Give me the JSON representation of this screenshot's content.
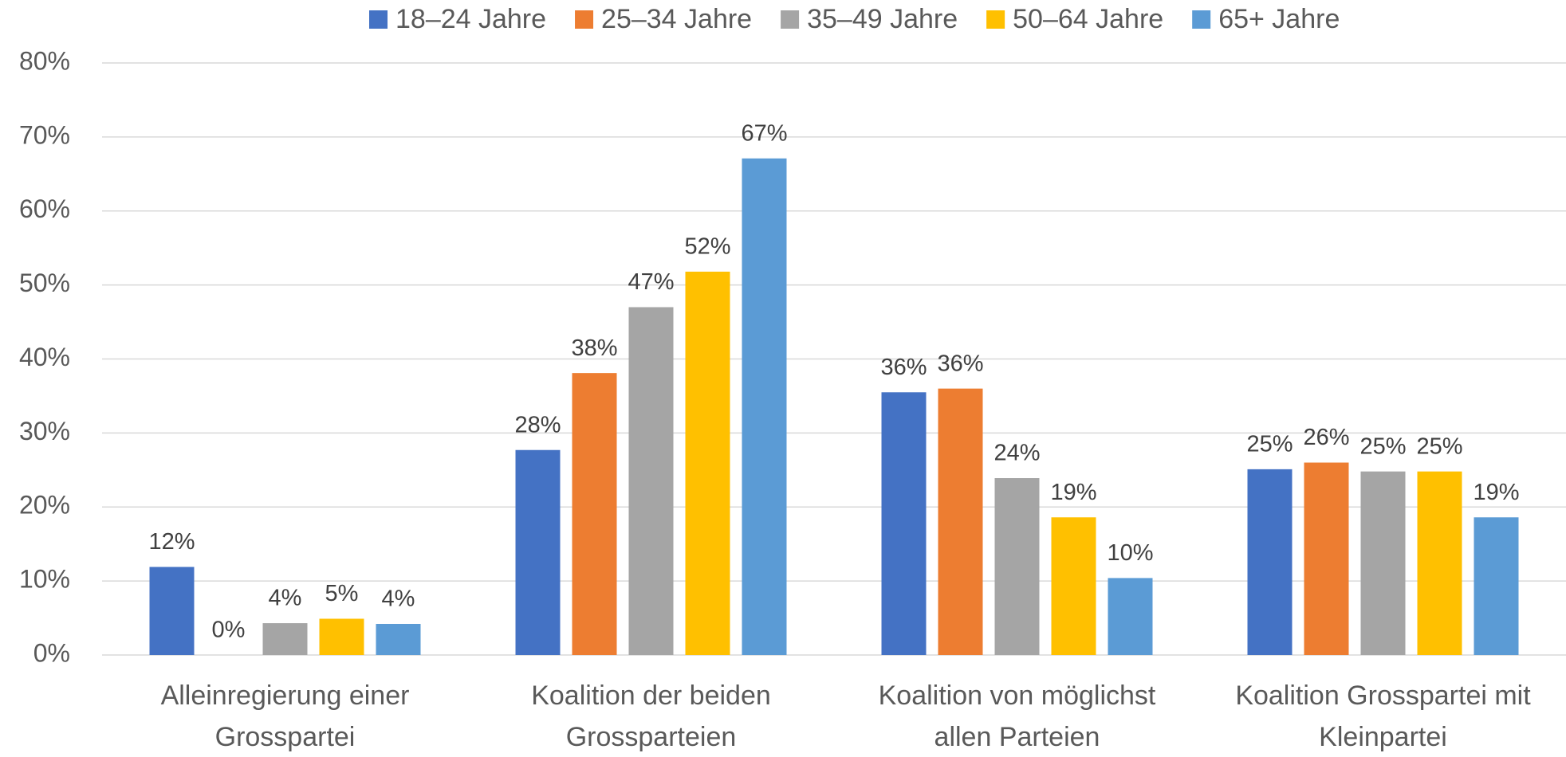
{
  "chart_data": {
    "type": "bar",
    "categories": [
      "Alleinregierung einer Grosspartei",
      "Koalition der beiden Grossparteien",
      "Koalition von möglichst allen Parteien",
      "Koalition Grosspartei mit Kleinpartei"
    ],
    "series": [
      {
        "name": "18–24 Jahre",
        "color": "#4472c4",
        "values": [
          11.9,
          27.7,
          35.5,
          25.1
        ],
        "value_labels": [
          "12%",
          "28%",
          "36%",
          "25%"
        ]
      },
      {
        "name": "25–34 Jahre",
        "color": "#ed7d31",
        "values": [
          0,
          38.1,
          36.0,
          26.0
        ],
        "value_labels": [
          "0%",
          "38%",
          "36%",
          "26%"
        ]
      },
      {
        "name": "35–49 Jahre",
        "color": "#a5a5a5",
        "values": [
          4.3,
          47.0,
          23.9,
          24.8
        ],
        "value_labels": [
          "4%",
          "47%",
          "24%",
          "25%"
        ]
      },
      {
        "name": "50–64 Jahre",
        "color": "#ffc000",
        "values": [
          4.9,
          51.8,
          18.6,
          24.8
        ],
        "value_labels": [
          "5%",
          "52%",
          "19%",
          "25%"
        ]
      },
      {
        "name": "65+ Jahre",
        "color": "#5b9bd5",
        "values": [
          4.2,
          67.1,
          10.4,
          18.6
        ],
        "value_labels": [
          "4%",
          "67%",
          "10%",
          "19%"
        ]
      }
    ],
    "ylim": [
      0,
      80
    ],
    "yticks": [
      {
        "value": 0,
        "label": "0%"
      },
      {
        "value": 10,
        "label": "10%"
      },
      {
        "value": 20,
        "label": "20%"
      },
      {
        "value": 30,
        "label": "30%"
      },
      {
        "value": 40,
        "label": "40%"
      },
      {
        "value": 50,
        "label": "50%"
      },
      {
        "value": 60,
        "label": "60%"
      },
      {
        "value": 70,
        "label": "70%"
      },
      {
        "value": 80,
        "label": "80%"
      }
    ],
    "grid": true,
    "legend": "top"
  }
}
